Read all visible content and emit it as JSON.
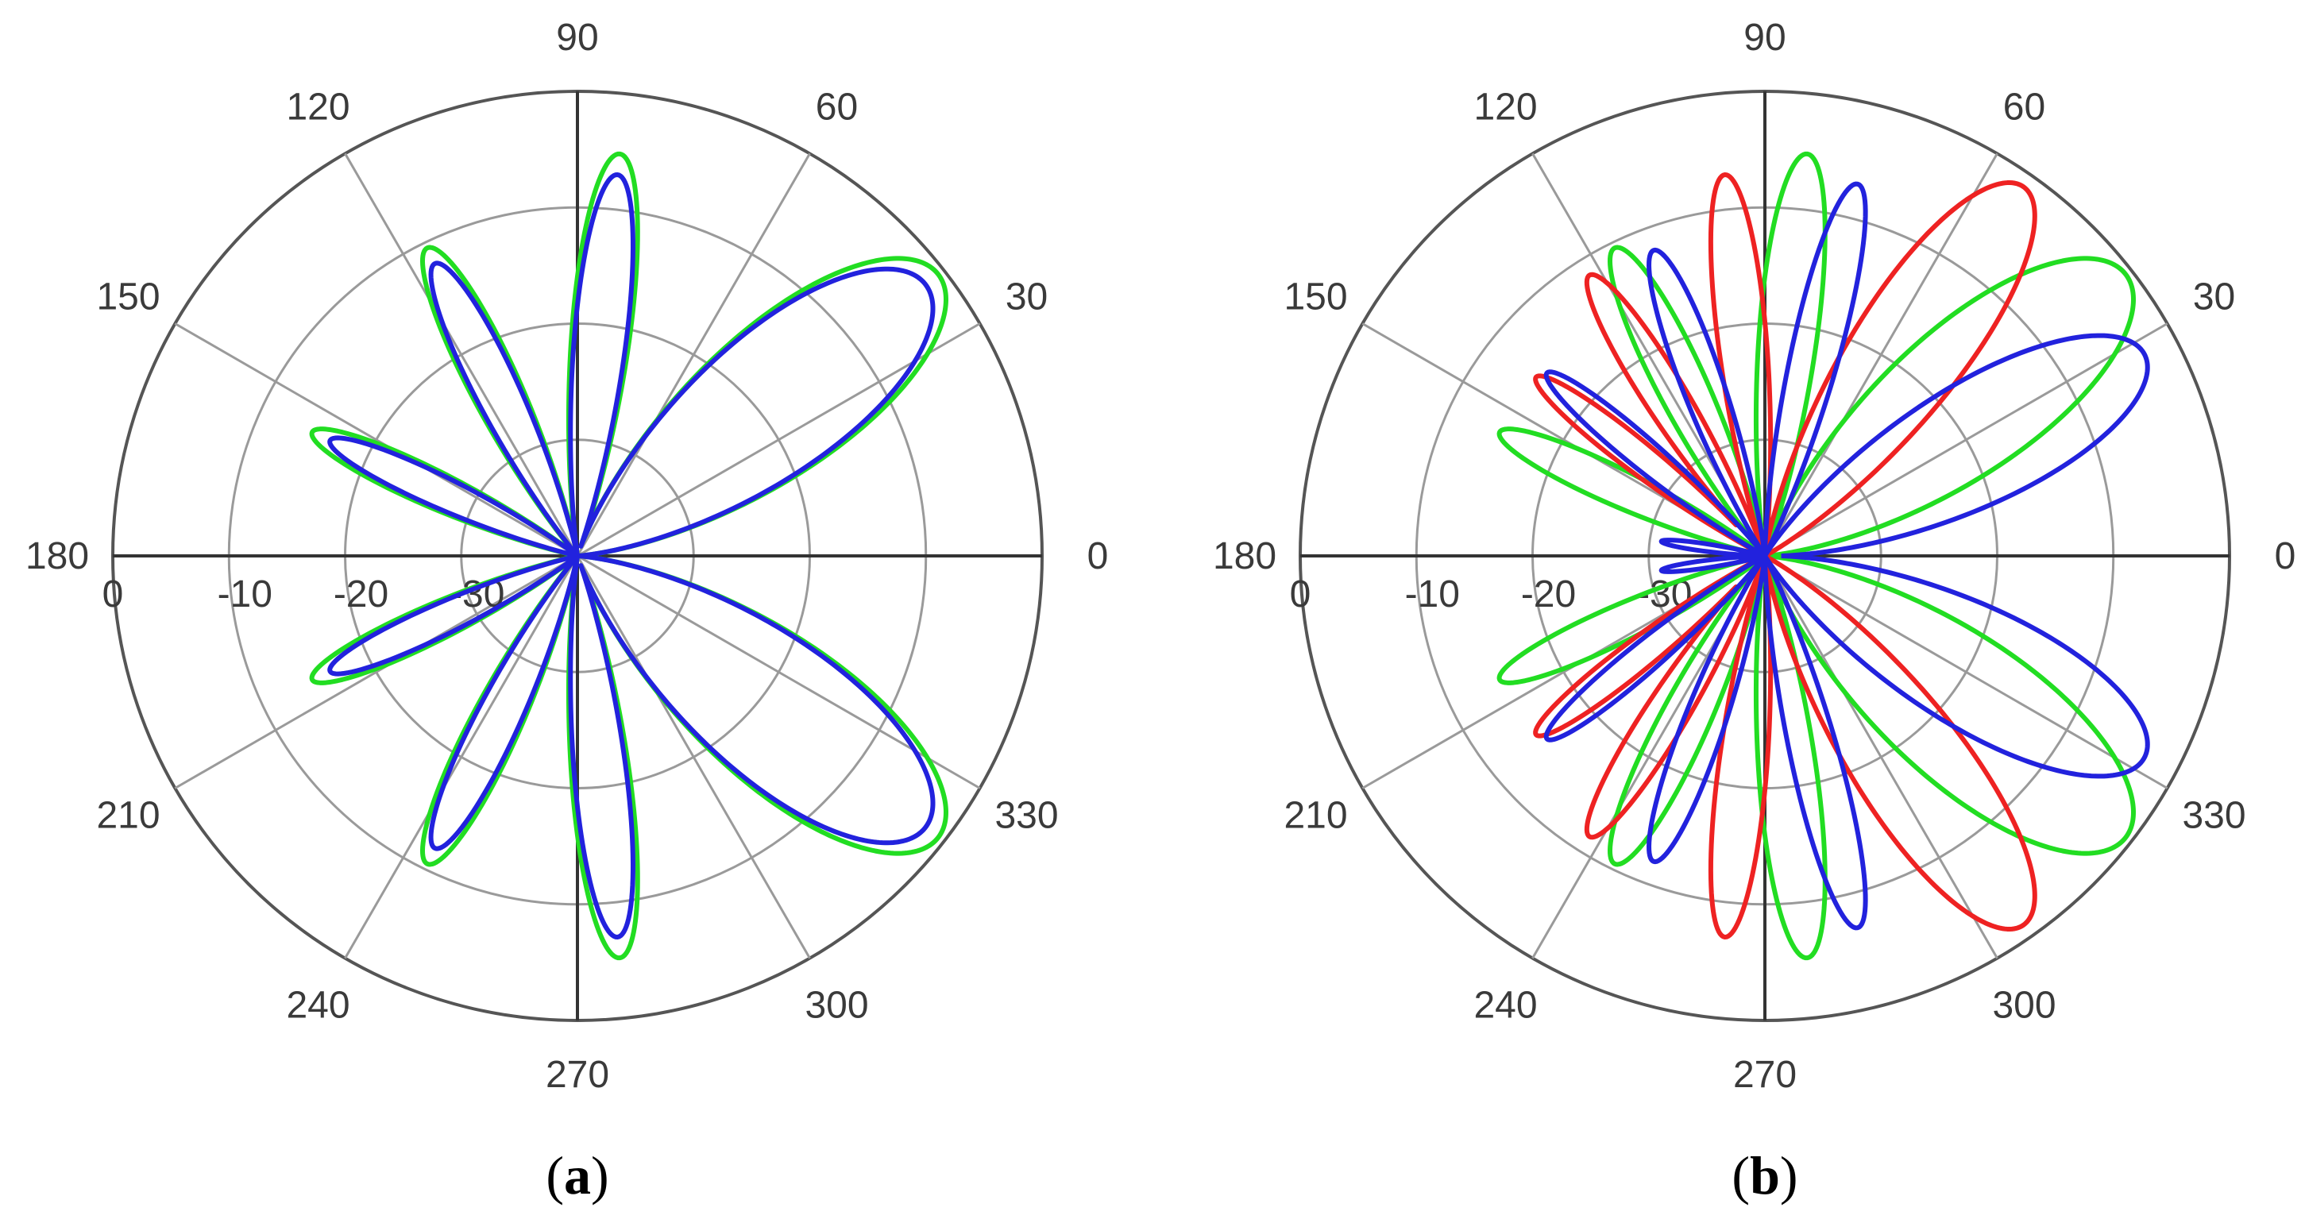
{
  "chart_data": [
    {
      "type": "polar",
      "panel_label": "a",
      "angle_ticks": [
        "0",
        "30",
        "60",
        "90",
        "120",
        "150",
        "180",
        "210",
        "240",
        "270",
        "300",
        "330"
      ],
      "radial_ticks": [
        "0",
        "-10",
        "-20",
        "-30"
      ],
      "rlim_db": [
        -40,
        0
      ],
      "grid": true,
      "series_colors": [
        "#22dd22",
        "#2222dd"
      ],
      "series": [
        {
          "color": "#22dd22",
          "lobes": [
            {
              "peak_deg": 38,
              "width_deg": 36,
              "level_db": -0.6
            },
            {
              "peak_deg": 84,
              "width_deg": 16,
              "level_db": -5.2
            },
            {
              "peak_deg": 116,
              "width_deg": 16,
              "level_db": -10.5
            },
            {
              "peak_deg": 155,
              "width_deg": 14,
              "level_db": -14.8
            },
            {
              "peak_deg": 205,
              "width_deg": 14,
              "level_db": -14.8
            },
            {
              "peak_deg": 244,
              "width_deg": 16,
              "level_db": -10.5
            },
            {
              "peak_deg": 276,
              "width_deg": 16,
              "level_db": -5.2
            },
            {
              "peak_deg": 322,
              "width_deg": 36,
              "level_db": -0.6
            }
          ]
        },
        {
          "color": "#2222dd",
          "lobes": [
            {
              "peak_deg": 38,
              "width_deg": 36,
              "level_db": -2.0
            },
            {
              "peak_deg": 84,
              "width_deg": 15,
              "level_db": -7.0
            },
            {
              "peak_deg": 116,
              "width_deg": 15,
              "level_db": -12.0
            },
            {
              "peak_deg": 155,
              "width_deg": 13,
              "level_db": -16.5
            },
            {
              "peak_deg": 205,
              "width_deg": 13,
              "level_db": -16.5
            },
            {
              "peak_deg": 244,
              "width_deg": 15,
              "level_db": -12.0
            },
            {
              "peak_deg": 276,
              "width_deg": 15,
              "level_db": -7.0
            },
            {
              "peak_deg": 322,
              "width_deg": 36,
              "level_db": -2.0
            }
          ]
        }
      ]
    },
    {
      "type": "polar",
      "panel_label": "b",
      "angle_ticks": [
        "0",
        "30",
        "60",
        "90",
        "120",
        "150",
        "180",
        "210",
        "240",
        "270",
        "300",
        "330"
      ],
      "radial_ticks": [
        "0",
        "-10",
        "-20",
        "-30"
      ],
      "rlim_db": [
        -40,
        0
      ],
      "grid": true,
      "series_colors": [
        "#22dd22",
        "#ee2222",
        "#2222dd"
      ],
      "series": [
        {
          "color": "#22dd22",
          "lobes": [
            {
              "peak_deg": 38,
              "width_deg": 36,
              "level_db": -0.6
            },
            {
              "peak_deg": 84,
              "width_deg": 16,
              "level_db": -5.2
            },
            {
              "peak_deg": 116,
              "width_deg": 16,
              "level_db": -10.5
            },
            {
              "peak_deg": 155,
              "width_deg": 14,
              "level_db": -14.8
            },
            {
              "peak_deg": 205,
              "width_deg": 14,
              "level_db": -14.8
            },
            {
              "peak_deg": 244,
              "width_deg": 16,
              "level_db": -10.5
            },
            {
              "peak_deg": 276,
              "width_deg": 16,
              "level_db": -5.2
            },
            {
              "peak_deg": 322,
              "width_deg": 36,
              "level_db": -0.6
            }
          ]
        },
        {
          "color": "#ee2222",
          "lobes": [
            {
              "peak_deg": 55,
              "width_deg": 28,
              "level_db": -1.2
            },
            {
              "peak_deg": 96,
              "width_deg": 14,
              "level_db": -7.0
            },
            {
              "peak_deg": 122,
              "width_deg": 14,
              "level_db": -11.5
            },
            {
              "peak_deg": 142,
              "width_deg": 12,
              "level_db": -15.0
            },
            {
              "peak_deg": 218,
              "width_deg": 12,
              "level_db": -15.0
            },
            {
              "peak_deg": 238,
              "width_deg": 14,
              "level_db": -11.5
            },
            {
              "peak_deg": 264,
              "width_deg": 14,
              "level_db": -7.0
            },
            {
              "peak_deg": 305,
              "width_deg": 28,
              "level_db": -1.2
            }
          ]
        },
        {
          "color": "#2222dd",
          "lobes": [
            {
              "peak_deg": 28,
              "width_deg": 32,
              "level_db": -3.0
            },
            {
              "peak_deg": 76,
              "width_deg": 14,
              "level_db": -7.0
            },
            {
              "peak_deg": 110,
              "width_deg": 14,
              "level_db": -12.0
            },
            {
              "peak_deg": 140,
              "width_deg": 12,
              "level_db": -15.5
            },
            {
              "peak_deg": 172,
              "width_deg": 8,
              "level_db": -31.0
            },
            {
              "peak_deg": 188,
              "width_deg": 8,
              "level_db": -31.0
            },
            {
              "peak_deg": 220,
              "width_deg": 12,
              "level_db": -15.5
            },
            {
              "peak_deg": 250,
              "width_deg": 14,
              "level_db": -12.0
            },
            {
              "peak_deg": 284,
              "width_deg": 14,
              "level_db": -7.0
            },
            {
              "peak_deg": 332,
              "width_deg": 32,
              "level_db": -3.0
            }
          ]
        }
      ]
    }
  ]
}
